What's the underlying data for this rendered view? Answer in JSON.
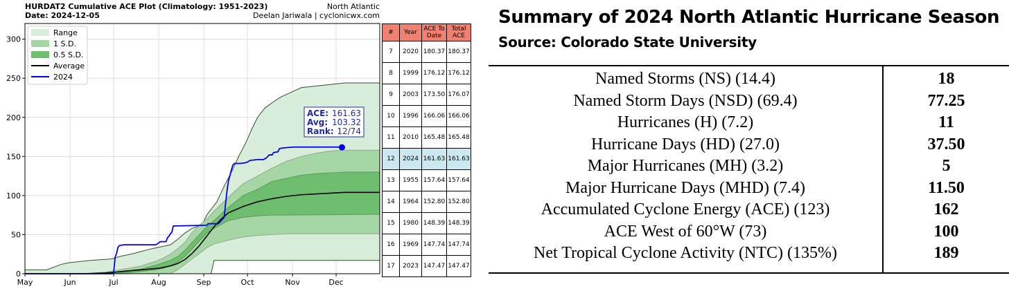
{
  "chart_data": [
    {
      "type": "area",
      "title": "HURDAT2 Cumulative ACE Plot (Climatology: 1951-2023)",
      "date_label": "Date: 2024-12-05",
      "region": "North Atlantic",
      "credit": "Deelan Jariwala | cyclonicwx.com",
      "xlabel": "",
      "ylabel": "",
      "x_ticks": [
        "May",
        "Jun",
        "Jul",
        "Aug",
        "Sep",
        "Oct",
        "Nov",
        "Dec"
      ],
      "y_ticks": [
        0,
        50,
        100,
        150,
        200,
        250,
        300
      ],
      "xlim": [
        "May 1",
        "Dec 31"
      ],
      "ylim": [
        0,
        320
      ],
      "grid": true,
      "legend_position": "top-left",
      "legend": [
        {
          "name": "Range",
          "color": "#d9eeda"
        },
        {
          "name": "1 S.D.",
          "color": "#a5d6a4"
        },
        {
          "name": "0.5 S.D.",
          "color": "#6fbd6f"
        },
        {
          "name": "Average",
          "color": "#000000"
        },
        {
          "name": "2024",
          "color": "#0000ee"
        }
      ],
      "annotation": {
        "lines": [
          {
            "key": "ACE:",
            "value": "161.63"
          },
          {
            "key": "Avg:",
            "value": "103.32"
          },
          {
            "key": "Rank:",
            "value": "12/74"
          }
        ],
        "color": "#1f2a9c"
      },
      "x_days_note": "days since May 1",
      "range_upper": [
        [
          0,
          5
        ],
        [
          15,
          5
        ],
        [
          25,
          12
        ],
        [
          30,
          14
        ],
        [
          45,
          17
        ],
        [
          60,
          19
        ],
        [
          65,
          22
        ],
        [
          75,
          26
        ],
        [
          85,
          31
        ],
        [
          90,
          33
        ],
        [
          100,
          37
        ],
        [
          105,
          44
        ],
        [
          110,
          52
        ],
        [
          115,
          58
        ],
        [
          122,
          63
        ],
        [
          125,
          75
        ],
        [
          132,
          92
        ],
        [
          137,
          112
        ],
        [
          142,
          130
        ],
        [
          147,
          150
        ],
        [
          152,
          168
        ],
        [
          156,
          185
        ],
        [
          160,
          200
        ],
        [
          165,
          212
        ],
        [
          171,
          220
        ],
        [
          176,
          226
        ],
        [
          183,
          232
        ],
        [
          190,
          238
        ],
        [
          200,
          240
        ],
        [
          210,
          242
        ],
        [
          220,
          244
        ],
        [
          244,
          244
        ]
      ],
      "range_lower": [
        [
          0,
          0
        ],
        [
          125,
          0
        ],
        [
          128,
          0
        ],
        [
          130,
          17
        ],
        [
          244,
          17
        ]
      ],
      "sd1_upper": [
        [
          0,
          0
        ],
        [
          40,
          0
        ],
        [
          55,
          2
        ],
        [
          65,
          5
        ],
        [
          80,
          10
        ],
        [
          90,
          16
        ],
        [
          95,
          20
        ],
        [
          100,
          25
        ],
        [
          105,
          32
        ],
        [
          110,
          40
        ],
        [
          115,
          53
        ],
        [
          120,
          62
        ],
        [
          125,
          70
        ],
        [
          130,
          80
        ],
        [
          140,
          98
        ],
        [
          150,
          115
        ],
        [
          160,
          125
        ],
        [
          170,
          135
        ],
        [
          180,
          144
        ],
        [
          190,
          150
        ],
        [
          200,
          154
        ],
        [
          210,
          157
        ],
        [
          220,
          158
        ],
        [
          244,
          158
        ]
      ],
      "sd1_lower": [
        [
          0,
          0
        ],
        [
          100,
          0
        ],
        [
          105,
          5
        ],
        [
          110,
          12
        ],
        [
          115,
          19
        ],
        [
          120,
          26
        ],
        [
          125,
          33
        ],
        [
          130,
          38
        ],
        [
          140,
          43
        ],
        [
          150,
          47
        ],
        [
          160,
          49
        ],
        [
          170,
          50
        ],
        [
          180,
          51
        ],
        [
          244,
          51
        ]
      ],
      "sd05_upper": [
        [
          0,
          0
        ],
        [
          40,
          0
        ],
        [
          55,
          1
        ],
        [
          65,
          3
        ],
        [
          80,
          6
        ],
        [
          90,
          11
        ],
        [
          95,
          14
        ],
        [
          100,
          17
        ],
        [
          105,
          22
        ],
        [
          110,
          30
        ],
        [
          115,
          40
        ],
        [
          120,
          50
        ],
        [
          125,
          60
        ],
        [
          130,
          68
        ],
        [
          140,
          85
        ],
        [
          150,
          100
        ],
        [
          160,
          108
        ],
        [
          170,
          118
        ],
        [
          180,
          122
        ],
        [
          190,
          126
        ],
        [
          200,
          128
        ],
        [
          210,
          129
        ],
        [
          220,
          130
        ],
        [
          244,
          130
        ]
      ],
      "sd05_lower": [
        [
          0,
          0
        ],
        [
          60,
          0
        ],
        [
          70,
          1
        ],
        [
          80,
          3
        ],
        [
          90,
          5
        ],
        [
          95,
          7
        ],
        [
          100,
          10
        ],
        [
          105,
          15
        ],
        [
          110,
          22
        ],
        [
          115,
          32
        ],
        [
          120,
          42
        ],
        [
          125,
          52
        ],
        [
          130,
          58
        ],
        [
          140,
          68
        ],
        [
          150,
          72
        ],
        [
          160,
          74
        ],
        [
          170,
          75
        ],
        [
          180,
          75
        ],
        [
          244,
          76
        ]
      ],
      "average": [
        [
          0,
          0
        ],
        [
          40,
          0
        ],
        [
          55,
          1
        ],
        [
          62,
          2
        ],
        [
          68,
          3
        ],
        [
          74,
          4
        ],
        [
          80,
          5
        ],
        [
          86,
          6
        ],
        [
          92,
          7
        ],
        [
          95,
          8
        ],
        [
          100,
          10
        ],
        [
          105,
          13
        ],
        [
          110,
          18
        ],
        [
          115,
          26
        ],
        [
          120,
          36
        ],
        [
          125,
          48
        ],
        [
          130,
          60
        ],
        [
          135,
          70
        ],
        [
          140,
          78
        ],
        [
          145,
          82
        ],
        [
          150,
          86
        ],
        [
          160,
          92
        ],
        [
          170,
          96
        ],
        [
          180,
          99
        ],
        [
          190,
          101
        ],
        [
          200,
          102
        ],
        [
          210,
          103
        ],
        [
          220,
          104
        ],
        [
          244,
          104
        ]
      ],
      "season_2024": [
        [
          0,
          0
        ],
        [
          50,
          0
        ],
        [
          60,
          0
        ],
        [
          61,
          1
        ],
        [
          62,
          21
        ],
        [
          63,
          26
        ],
        [
          64,
          34
        ],
        [
          65,
          36
        ],
        [
          68,
          37
        ],
        [
          90,
          37
        ],
        [
          91,
          38
        ],
        [
          93,
          41
        ],
        [
          97,
          41
        ],
        [
          98,
          46
        ],
        [
          99,
          48
        ],
        [
          100,
          51
        ],
        [
          101,
          53
        ],
        [
          102,
          61
        ],
        [
          125,
          62
        ],
        [
          126,
          64
        ],
        [
          133,
          64
        ],
        [
          135,
          68
        ],
        [
          137,
          72
        ],
        [
          138,
          90
        ],
        [
          139,
          107
        ],
        [
          140,
          119
        ],
        [
          141,
          126
        ],
        [
          142,
          133
        ],
        [
          143,
          139
        ],
        [
          144,
          141
        ],
        [
          148,
          141
        ],
        [
          152,
          142
        ],
        [
          155,
          145
        ],
        [
          160,
          146
        ],
        [
          164,
          146
        ],
        [
          165,
          147
        ],
        [
          166,
          148
        ],
        [
          168,
          152
        ],
        [
          170,
          152
        ],
        [
          171,
          155
        ],
        [
          174,
          156
        ],
        [
          175,
          160
        ],
        [
          178,
          161
        ],
        [
          185,
          162
        ],
        [
          200,
          162
        ],
        [
          218,
          162
        ]
      ],
      "marker": {
        "day": 218,
        "value": 161.63
      }
    }
  ],
  "ace_table": {
    "headers": [
      "#",
      "Year",
      "ACE To Date",
      "Total ACE"
    ],
    "rows": [
      {
        "rank": "7",
        "year": "2020",
        "to_date": "180.37",
        "total": "180.37"
      },
      {
        "rank": "8",
        "year": "1999",
        "to_date": "176.12",
        "total": "176.12"
      },
      {
        "rank": "9",
        "year": "2003",
        "to_date": "173.50",
        "total": "176.07"
      },
      {
        "rank": "10",
        "year": "1996",
        "to_date": "166.06",
        "total": "166.06"
      },
      {
        "rank": "11",
        "year": "2010",
        "to_date": "165.48",
        "total": "165.48"
      },
      {
        "rank": "12",
        "year": "2024",
        "to_date": "161.63",
        "total": "161.63",
        "highlight": true
      },
      {
        "rank": "13",
        "year": "1955",
        "to_date": "157.64",
        "total": "157.64"
      },
      {
        "rank": "14",
        "year": "1964",
        "to_date": "152.80",
        "total": "152.80"
      },
      {
        "rank": "15",
        "year": "1980",
        "to_date": "148.39",
        "total": "148.39"
      },
      {
        "rank": "16",
        "year": "1969",
        "to_date": "147.74",
        "total": "147.74"
      },
      {
        "rank": "17",
        "year": "2023",
        "to_date": "147.47",
        "total": "147.47"
      }
    ]
  },
  "summary": {
    "title": "Summary of 2024 North Atlantic Hurricane Season",
    "source": "Source: Colorado State University",
    "rows": [
      {
        "label": "Named Storms (NS) (14.4)",
        "value": "18"
      },
      {
        "label": "Named Storm Days (NSD) (69.4)",
        "value": "77.25"
      },
      {
        "label": "Hurricanes (H) (7.2)",
        "value": "11"
      },
      {
        "label": "Hurricane Days (HD) (27.0)",
        "value": "37.50"
      },
      {
        "label": "Major Hurricanes (MH) (3.2)",
        "value": "5"
      },
      {
        "label": "Major Hurricane Days (MHD) (7.4)",
        "value": "11.50"
      },
      {
        "label": "Accumulated Cyclone Energy (ACE) (123)",
        "value": "162"
      },
      {
        "label": "ACE West of 60°W (73)",
        "value": "100"
      },
      {
        "label": "Net Tropical Cyclone Activity (NTC) (135%)",
        "value": "189"
      }
    ]
  }
}
